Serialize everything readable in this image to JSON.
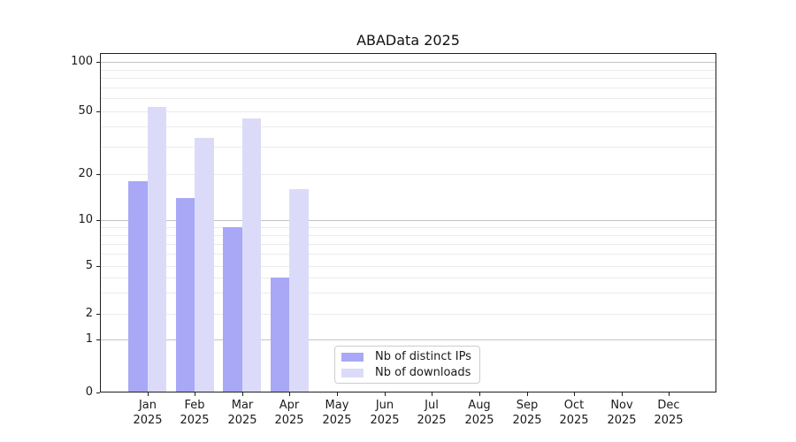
{
  "chart_data": {
    "type": "bar",
    "title": "ABAData 2025",
    "categories": [
      "Jan",
      "Feb",
      "Mar",
      "Apr",
      "May",
      "Jun",
      "Jul",
      "Aug",
      "Sep",
      "Oct",
      "Nov",
      "Dec"
    ],
    "year": "2025",
    "series": [
      {
        "name": "Nb of distinct IPs",
        "color": "#a8a8f6",
        "values": [
          18,
          14,
          9,
          4,
          0,
          0,
          0,
          0,
          0,
          0,
          0,
          0
        ]
      },
      {
        "name": "Nb of downloads",
        "color": "#dbdbf9",
        "values": [
          53,
          34,
          45,
          16,
          0,
          0,
          0,
          0,
          0,
          0,
          0,
          0
        ]
      }
    ],
    "y_axis": {
      "tick_labels": [
        0,
        1,
        2,
        5,
        10,
        20,
        50,
        100
      ],
      "strong_gridlines": [
        1,
        10,
        100
      ],
      "light_gridlines": [
        2,
        3,
        4,
        5,
        6,
        7,
        8,
        9,
        20,
        30,
        40,
        50,
        60,
        70,
        80,
        90
      ],
      "scale": "log-like above 1 with linear 0-1 segment",
      "ylim": [
        0,
        112
      ]
    },
    "legend": {
      "position": "lower-center"
    },
    "colors": {
      "grid_strong": "#c3c3c3",
      "grid_light": "#ebebeb",
      "spine": "#1f1f1f",
      "text": "#1a1a1a",
      "background": "#ffffff"
    }
  }
}
